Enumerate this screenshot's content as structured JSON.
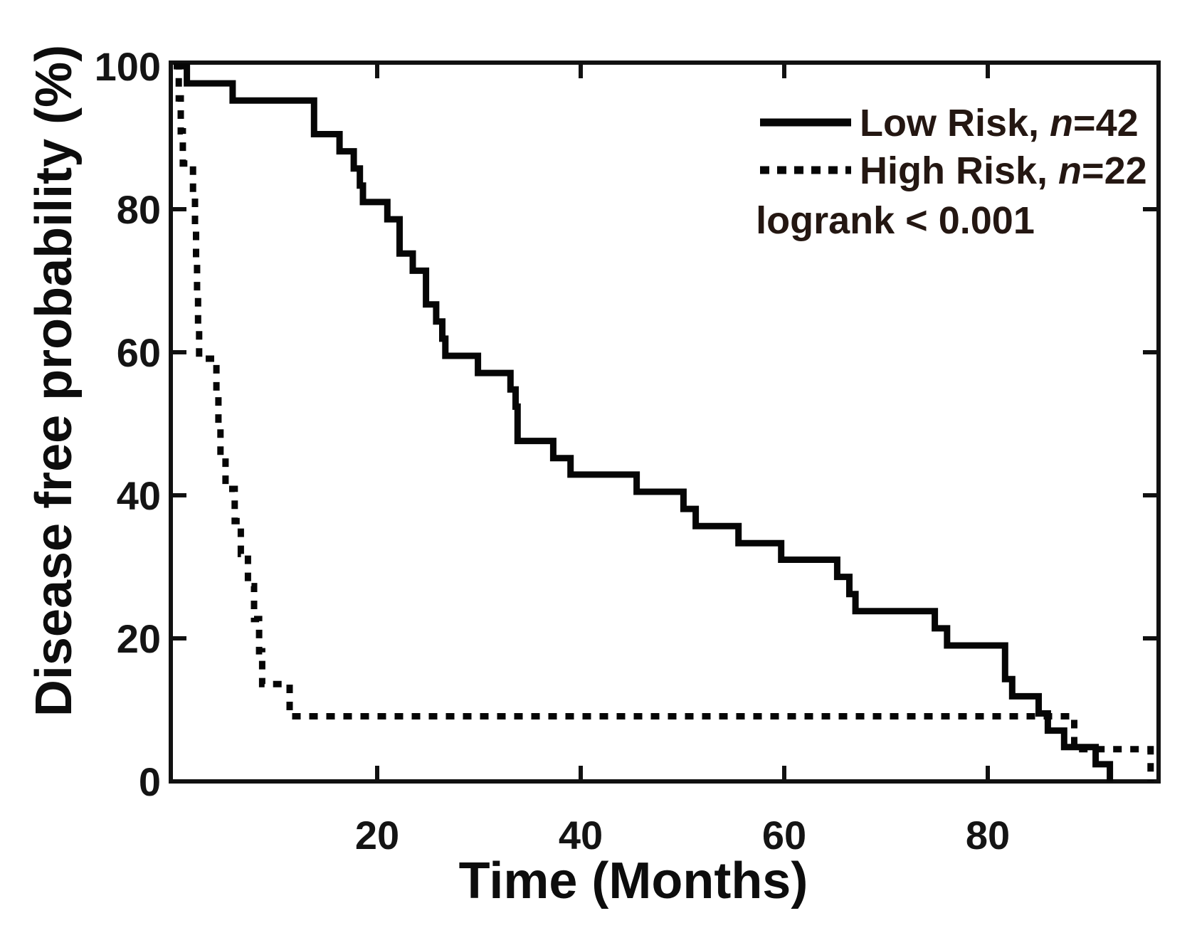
{
  "figure": {
    "background": "#ffffff",
    "frame_color": "#111111",
    "curve_color": "#060606"
  },
  "chart_data": {
    "type": "line",
    "subtype": "kaplan-meier-step",
    "title": "",
    "xlabel": "Time (Months)",
    "ylabel": "Disease free probability (%)",
    "xlim": [
      0,
      96.8
    ],
    "ylim": [
      0,
      100
    ],
    "grid": false,
    "xticks": [
      20,
      40,
      60,
      80
    ],
    "xtick_labels": [
      "20",
      "40",
      "60",
      "80"
    ],
    "ytick_marks": [
      20,
      40,
      60,
      80
    ],
    "ytick_labels": [
      {
        "value": 0,
        "label": "0"
      },
      {
        "value": 20,
        "label": "20"
      },
      {
        "value": 40,
        "label": "40"
      },
      {
        "value": 60,
        "label": "60"
      },
      {
        "value": 80,
        "label": "80"
      },
      {
        "value": 100,
        "label": "100"
      }
    ],
    "legend_position": "top-right-inside",
    "series": [
      {
        "name": "Low Risk",
        "n": 42,
        "style": "solid",
        "color": "#060606",
        "points": [
          [
            0,
            100
          ],
          [
            1.3,
            97.6
          ],
          [
            5.8,
            95.2
          ],
          [
            13.8,
            90.5
          ],
          [
            16.3,
            88.1
          ],
          [
            17.7,
            85.7
          ],
          [
            18.3,
            83.3
          ],
          [
            18.6,
            81.0
          ],
          [
            21.0,
            78.6
          ],
          [
            22.2,
            73.8
          ],
          [
            23.5,
            71.4
          ],
          [
            24.8,
            66.7
          ],
          [
            25.8,
            64.3
          ],
          [
            26.4,
            61.9
          ],
          [
            26.7,
            59.5
          ],
          [
            29.9,
            57.1
          ],
          [
            33.1,
            54.8
          ],
          [
            33.6,
            52.4
          ],
          [
            33.8,
            47.6
          ],
          [
            37.3,
            45.2
          ],
          [
            39.0,
            42.9
          ],
          [
            45.5,
            40.5
          ],
          [
            50.1,
            38.1
          ],
          [
            51.3,
            35.7
          ],
          [
            55.5,
            33.3
          ],
          [
            59.7,
            31.0
          ],
          [
            65.2,
            28.6
          ],
          [
            66.4,
            26.2
          ],
          [
            67.0,
            23.8
          ],
          [
            74.8,
            21.4
          ],
          [
            76.0,
            19.0
          ],
          [
            81.7,
            14.3
          ],
          [
            82.4,
            11.9
          ],
          [
            85.0,
            9.5
          ],
          [
            85.9,
            7.1
          ],
          [
            87.5,
            4.8
          ],
          [
            90.6,
            2.4
          ],
          [
            92.0,
            0
          ]
        ]
      },
      {
        "name": "High Risk",
        "n": 22,
        "style": "dashed",
        "color": "#060606",
        "points": [
          [
            0,
            100
          ],
          [
            0.5,
            95.5
          ],
          [
            0.7,
            90.9
          ],
          [
            0.9,
            86.4
          ],
          [
            1.9,
            81.8
          ],
          [
            2.1,
            77.3
          ],
          [
            2.2,
            72.7
          ],
          [
            2.3,
            68.2
          ],
          [
            2.4,
            63.6
          ],
          [
            2.5,
            59.1
          ],
          [
            4.2,
            54.5
          ],
          [
            4.4,
            50.0
          ],
          [
            4.6,
            45.5
          ],
          [
            5.1,
            40.9
          ],
          [
            6.0,
            36.4
          ],
          [
            6.6,
            31.8
          ],
          [
            7.3,
            27.3
          ],
          [
            7.9,
            22.7
          ],
          [
            8.4,
            18.2
          ],
          [
            8.7,
            13.6
          ],
          [
            11.4,
            9.1
          ],
          [
            88.5,
            4.5
          ],
          [
            96.0,
            0
          ]
        ]
      }
    ]
  },
  "axes": {
    "x_title": "Time (Months)",
    "y_title": "Disease free probability (%)"
  },
  "legend": {
    "series": [
      {
        "prefix": "Low Risk, ",
        "nvar": "n",
        "suffix": "=42"
      },
      {
        "prefix": "High Risk, ",
        "nvar": "n",
        "suffix": "=22"
      }
    ],
    "annotation": "logrank < 0.001"
  }
}
